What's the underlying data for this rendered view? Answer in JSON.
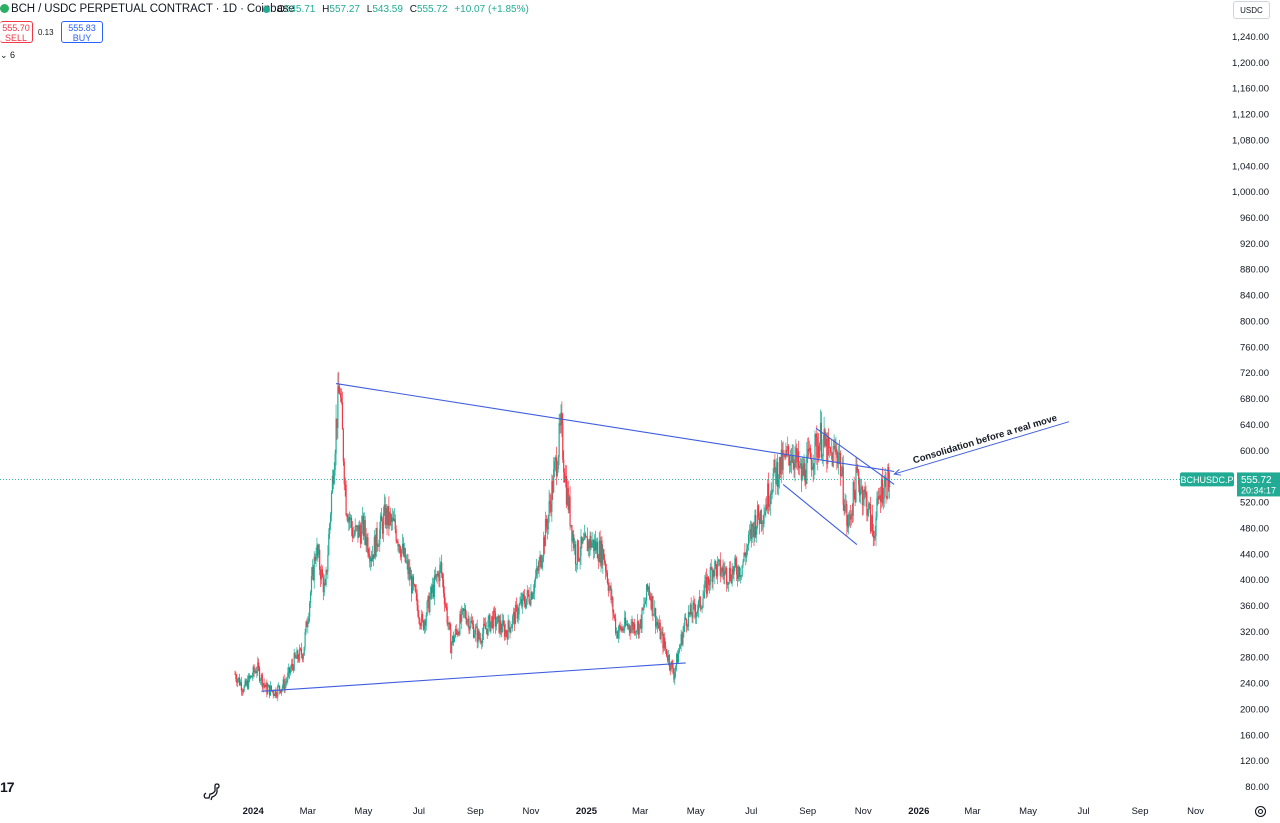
{
  "header": {
    "title": "BCH / USDC PERPETUAL CONTRACT · 1D · Coinbase",
    "ohlc": [
      {
        "label": "O",
        "value": "545.71"
      },
      {
        "label": "H",
        "value": "557.27"
      },
      {
        "label": "L",
        "value": "543.59"
      },
      {
        "label": "C",
        "value": "555.72"
      },
      {
        "label": "",
        "value": "+10.07 (+1.85%)"
      }
    ],
    "sell_price": "555.70",
    "sell_label": "SELL",
    "spread": "0.13",
    "buy_price": "555.83",
    "buy_label": "BUY",
    "indicators_toggle": "6",
    "currency": "USDC"
  },
  "colors": {
    "up": "#22ab94",
    "down": "#f23645",
    "trendline": "#3f5ee0",
    "price_label_bg": "#22ab94"
  },
  "chart_data": {
    "type": "candlestick",
    "symbol": "BCHUSDC.P",
    "timeframe": "1D",
    "x_axis_type": "date",
    "xlim": [
      "2023-12-12",
      "2026-11-30"
    ],
    "ylim": [
      60,
      1260
    ],
    "y_ticks": [
      80,
      120,
      160,
      200,
      240,
      280,
      320,
      360,
      400,
      440,
      480,
      520,
      560,
      600,
      640,
      680,
      720,
      760,
      800,
      840,
      880,
      920,
      960,
      1000,
      1040,
      1080,
      1120,
      1160,
      1200,
      1240
    ],
    "x_ticks": [
      {
        "date": "2024-01-01",
        "label": "2024",
        "bold": true
      },
      {
        "date": "2024-03-01",
        "label": "Mar"
      },
      {
        "date": "2024-05-01",
        "label": "May"
      },
      {
        "date": "2024-07-01",
        "label": "Jul"
      },
      {
        "date": "2024-09-01",
        "label": "Sep"
      },
      {
        "date": "2024-11-01",
        "label": "Nov"
      },
      {
        "date": "2025-01-01",
        "label": "2025",
        "bold": true
      },
      {
        "date": "2025-03-01",
        "label": "Mar"
      },
      {
        "date": "2025-05-01",
        "label": "May"
      },
      {
        "date": "2025-07-01",
        "label": "Jul"
      },
      {
        "date": "2025-09-01",
        "label": "Sep"
      },
      {
        "date": "2025-11-01",
        "label": "Nov"
      },
      {
        "date": "2026-01-01",
        "label": "2026",
        "bold": true
      },
      {
        "date": "2026-03-01",
        "label": "Mar"
      },
      {
        "date": "2026-05-01",
        "label": "May"
      },
      {
        "date": "2026-07-01",
        "label": "Jul"
      },
      {
        "date": "2026-09-01",
        "label": "Sep"
      },
      {
        "date": "2026-11-01",
        "label": "Nov"
      }
    ],
    "price_path": [
      {
        "date": "2023-12-12",
        "price": 255
      },
      {
        "date": "2023-12-22",
        "price": 232
      },
      {
        "date": "2024-01-05",
        "price": 265
      },
      {
        "date": "2024-01-15",
        "price": 232
      },
      {
        "date": "2024-01-25",
        "price": 228
      },
      {
        "date": "2024-02-05",
        "price": 240
      },
      {
        "date": "2024-02-15",
        "price": 275
      },
      {
        "date": "2024-02-25",
        "price": 290
      },
      {
        "date": "2024-03-10",
        "price": 450
      },
      {
        "date": "2024-03-20",
        "price": 380
      },
      {
        "date": "2024-04-01",
        "price": 640
      },
      {
        "date": "2024-04-05",
        "price": 700
      },
      {
        "date": "2024-04-12",
        "price": 520
      },
      {
        "date": "2024-04-20",
        "price": 470
      },
      {
        "date": "2024-05-01",
        "price": 480
      },
      {
        "date": "2024-05-10",
        "price": 440
      },
      {
        "date": "2024-05-25",
        "price": 500
      },
      {
        "date": "2024-06-05",
        "price": 480
      },
      {
        "date": "2024-06-20",
        "price": 410
      },
      {
        "date": "2024-07-05",
        "price": 330
      },
      {
        "date": "2024-07-15",
        "price": 380
      },
      {
        "date": "2024-07-25",
        "price": 420
      },
      {
        "date": "2024-08-05",
        "price": 300
      },
      {
        "date": "2024-08-20",
        "price": 350
      },
      {
        "date": "2024-09-05",
        "price": 310
      },
      {
        "date": "2024-09-20",
        "price": 340
      },
      {
        "date": "2024-10-05",
        "price": 320
      },
      {
        "date": "2024-10-20",
        "price": 360
      },
      {
        "date": "2024-11-01",
        "price": 380
      },
      {
        "date": "2024-11-10",
        "price": 420
      },
      {
        "date": "2024-11-20",
        "price": 500
      },
      {
        "date": "2024-12-04",
        "price": 635
      },
      {
        "date": "2024-12-10",
        "price": 540
      },
      {
        "date": "2024-12-20",
        "price": 440
      },
      {
        "date": "2025-01-05",
        "price": 460
      },
      {
        "date": "2025-01-20",
        "price": 440
      },
      {
        "date": "2025-02-03",
        "price": 320
      },
      {
        "date": "2025-02-15",
        "price": 330
      },
      {
        "date": "2025-03-01",
        "price": 330
      },
      {
        "date": "2025-03-10",
        "price": 390
      },
      {
        "date": "2025-03-20",
        "price": 330
      },
      {
        "date": "2025-04-07",
        "price": 255
      },
      {
        "date": "2025-04-20",
        "price": 340
      },
      {
        "date": "2025-05-05",
        "price": 360
      },
      {
        "date": "2025-05-20",
        "price": 420
      },
      {
        "date": "2025-06-05",
        "price": 410
      },
      {
        "date": "2025-06-20",
        "price": 420
      },
      {
        "date": "2025-07-05",
        "price": 490
      },
      {
        "date": "2025-07-15",
        "price": 510
      },
      {
        "date": "2025-07-25",
        "price": 560
      },
      {
        "date": "2025-08-05",
        "price": 580
      },
      {
        "date": "2025-08-15",
        "price": 600
      },
      {
        "date": "2025-08-25",
        "price": 560
      },
      {
        "date": "2025-09-05",
        "price": 590
      },
      {
        "date": "2025-09-15",
        "price": 620
      },
      {
        "date": "2025-09-25",
        "price": 590
      },
      {
        "date": "2025-10-05",
        "price": 600
      },
      {
        "date": "2025-10-15",
        "price": 480
      },
      {
        "date": "2025-10-25",
        "price": 560
      },
      {
        "date": "2025-11-05",
        "price": 520
      },
      {
        "date": "2025-11-12",
        "price": 470
      },
      {
        "date": "2025-11-20",
        "price": 540
      },
      {
        "date": "2025-11-30",
        "price": 555.72
      }
    ],
    "last_price": {
      "symbol": "BCHUSDC.P",
      "price": "555.72",
      "countdown": "20:34:17"
    },
    "trendlines": [
      {
        "name": "upper",
        "from": {
          "date": "2024-04-01",
          "price": 704
        },
        "to": {
          "date": "2025-12-05",
          "price": 568
        }
      },
      {
        "name": "lower",
        "from": {
          "date": "2024-01-10",
          "price": 228
        },
        "to": {
          "date": "2025-04-20",
          "price": 272
        }
      },
      {
        "name": "channel-top",
        "from": {
          "date": "2025-09-10",
          "price": 635
        },
        "to": {
          "date": "2025-12-05",
          "price": 548
        }
      },
      {
        "name": "channel-bottom",
        "from": {
          "date": "2025-08-05",
          "price": 548
        },
        "to": {
          "date": "2025-10-25",
          "price": 455
        }
      }
    ],
    "annotation": {
      "text": "Consolidation before a real move",
      "arrow_from": {
        "date": "2026-06-15",
        "price": 645
      },
      "arrow_to": {
        "date": "2025-12-05",
        "price": 564
      }
    }
  }
}
